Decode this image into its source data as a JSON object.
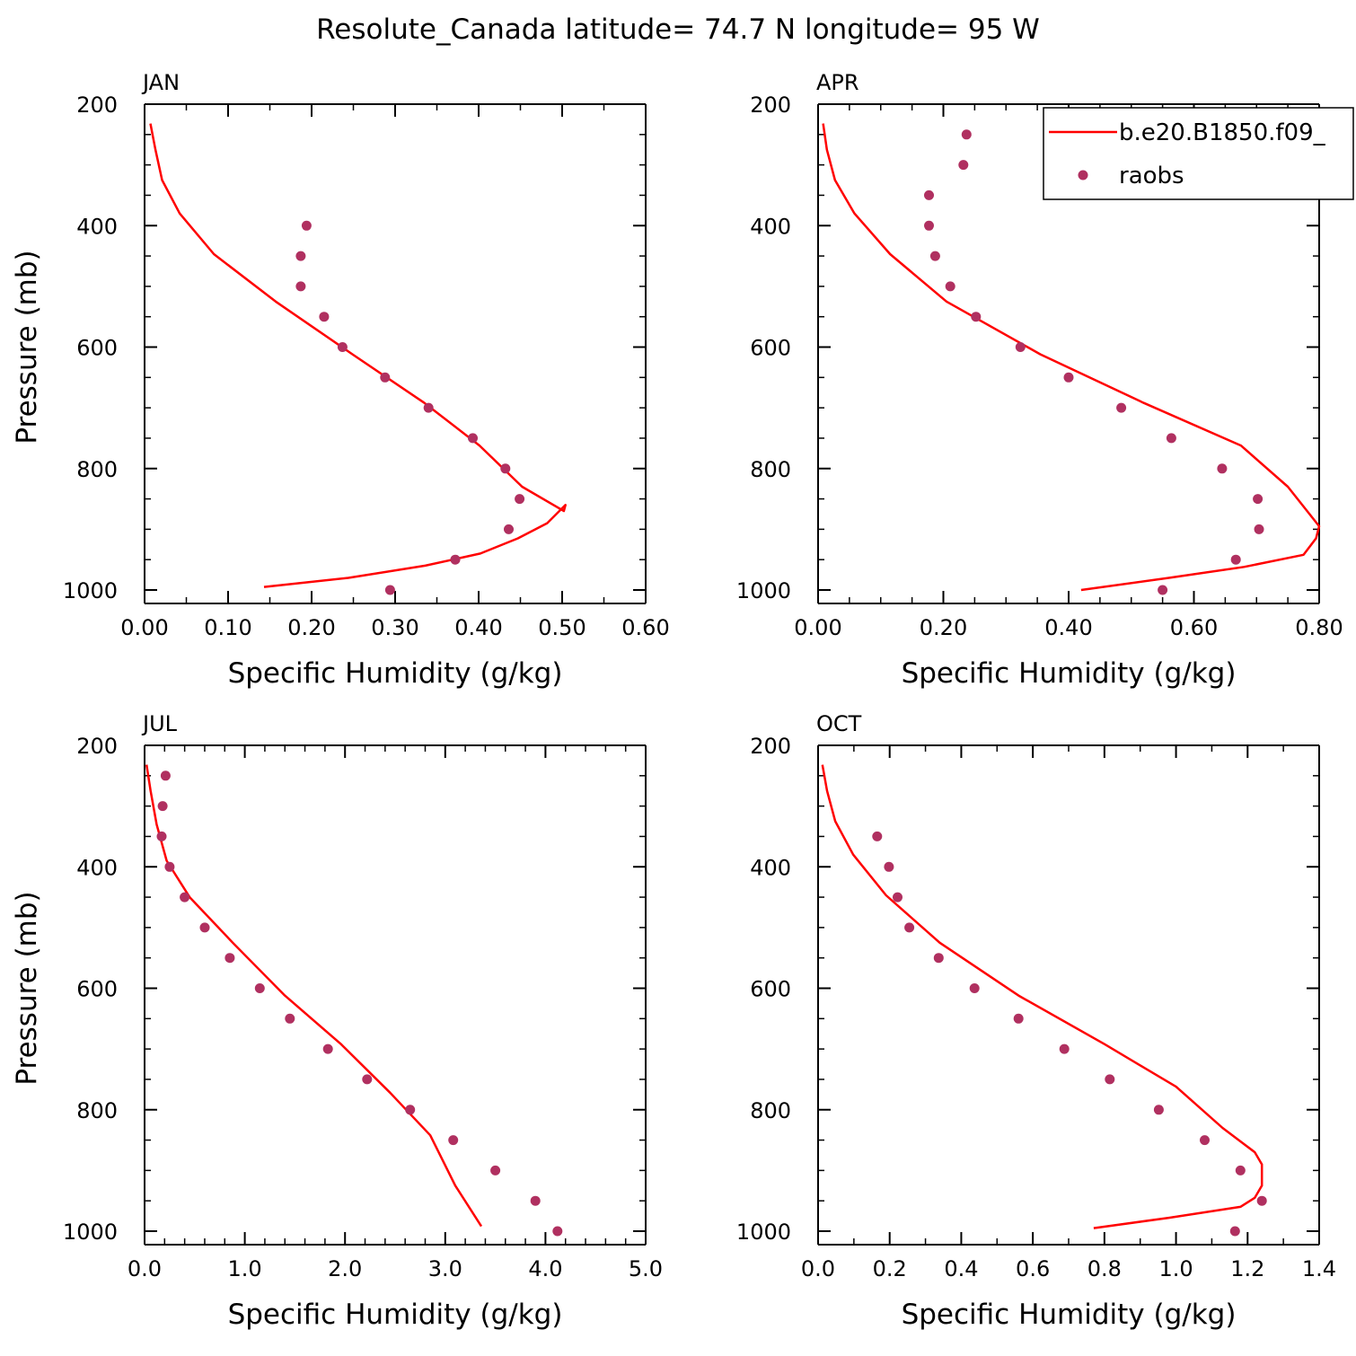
{
  "title": "Resolute_Canada  latitude= 74.7 N longitude= 95 W",
  "legend": {
    "model_label": "b.e20.B1850.f09_",
    "obs_label": "raobs",
    "model_color": "#ff0000",
    "obs_color": "#b03060"
  },
  "chart_data": [
    {
      "type": "line",
      "panel": "JAN",
      "xlabel": "Specific Humidity (g/kg)",
      "ylabel": "Pressure (mb)",
      "xlim": [
        0,
        0.6
      ],
      "ylim": [
        200,
        1000
      ],
      "y_inverted": true,
      "xticks": [
        "0.00",
        "0.10",
        "0.20",
        "0.30",
        "0.40",
        "0.50",
        "0.60"
      ],
      "xtick_values": [
        0,
        0.1,
        0.2,
        0.3,
        0.4,
        0.5,
        0.6
      ],
      "yticks": [
        "200",
        "400",
        "600",
        "800",
        "1000"
      ],
      "ytick_values": [
        200,
        400,
        600,
        800,
        1000
      ],
      "series": [
        {
          "name": "b.e20.B1850.f09_",
          "kind": "line",
          "x": [
            0.007,
            0.013,
            0.021,
            0.042,
            0.083,
            0.157,
            0.249,
            0.335,
            0.401,
            0.452,
            0.502,
            0.504,
            0.482,
            0.447,
            0.402,
            0.336,
            0.244,
            0.143
          ],
          "y": [
            232,
            275,
            325,
            380,
            447,
            525,
            612,
            692,
            762,
            830,
            870,
            860,
            890,
            915,
            940,
            960,
            980,
            995
          ]
        },
        {
          "name": "raobs",
          "kind": "scatter",
          "x": [
            0.194,
            0.187,
            0.187,
            0.215,
            0.237,
            0.288,
            0.34,
            0.393,
            0.432,
            0.449,
            0.436,
            0.372,
            0.294
          ],
          "y": [
            400,
            450,
            500,
            550,
            600,
            650,
            700,
            750,
            800,
            850,
            900,
            950,
            1000
          ]
        }
      ]
    },
    {
      "type": "line",
      "panel": "APR",
      "xlabel": "Specific Humidity (g/kg)",
      "ylabel": "",
      "xlim": [
        0,
        0.8
      ],
      "ylim": [
        200,
        1000
      ],
      "y_inverted": true,
      "xticks": [
        "0.00",
        "0.20",
        "0.40",
        "0.60",
        "0.80"
      ],
      "xtick_values": [
        0,
        0.2,
        0.4,
        0.6,
        0.8
      ],
      "yticks": [
        "200",
        "400",
        "600",
        "800",
        "1000"
      ],
      "ytick_values": [
        200,
        400,
        600,
        800,
        1000
      ],
      "series": [
        {
          "name": "b.e20.B1850.f09_",
          "kind": "line",
          "x": [
            0.008,
            0.014,
            0.027,
            0.058,
            0.115,
            0.205,
            0.355,
            0.52,
            0.675,
            0.75,
            0.8,
            0.795,
            0.775,
            0.68,
            0.56,
            0.42
          ],
          "y": [
            232,
            275,
            325,
            380,
            447,
            525,
            612,
            692,
            762,
            830,
            895,
            915,
            942,
            962,
            980,
            1000
          ]
        },
        {
          "name": "raobs",
          "kind": "scatter",
          "x": [
            0.237,
            0.232,
            0.177,
            0.177,
            0.187,
            0.211,
            0.252,
            0.323,
            0.4,
            0.484,
            0.564,
            0.645,
            0.702,
            0.704,
            0.667,
            0.55
          ],
          "y": [
            250,
            300,
            350,
            400,
            450,
            500,
            550,
            600,
            650,
            700,
            750,
            800,
            850,
            900,
            950,
            1000
          ]
        }
      ]
    },
    {
      "type": "line",
      "panel": "JUL",
      "xlabel": "Specific Humidity (g/kg)",
      "ylabel": "Pressure (mb)",
      "xlim": [
        0,
        5.0
      ],
      "ylim": [
        200,
        1000
      ],
      "y_inverted": true,
      "xticks": [
        "0.0",
        "1.0",
        "2.0",
        "3.0",
        "4.0",
        "5.0"
      ],
      "xtick_values": [
        0,
        1,
        2,
        3,
        4,
        5
      ],
      "yticks": [
        "200",
        "400",
        "600",
        "800",
        "1000"
      ],
      "ytick_values": [
        200,
        400,
        600,
        800,
        1000
      ],
      "series": [
        {
          "name": "b.e20.B1850.f09_",
          "kind": "line",
          "x": [
            0.02,
            0.06,
            0.12,
            0.22,
            0.45,
            0.88,
            1.4,
            1.96,
            2.45,
            2.85,
            3.1,
            3.36
          ],
          "y": [
            232,
            275,
            330,
            390,
            450,
            525,
            612,
            692,
            772,
            842,
            925,
            992
          ]
        },
        {
          "name": "raobs",
          "kind": "scatter",
          "x": [
            0.21,
            0.18,
            0.17,
            0.25,
            0.4,
            0.6,
            0.85,
            1.15,
            1.45,
            1.83,
            2.22,
            2.65,
            3.08,
            3.5,
            3.9,
            4.12
          ],
          "y": [
            250,
            300,
            350,
            400,
            450,
            500,
            550,
            600,
            650,
            700,
            750,
            800,
            850,
            900,
            950,
            1000
          ]
        }
      ]
    },
    {
      "type": "line",
      "panel": "OCT",
      "xlabel": "Specific Humidity (g/kg)",
      "ylabel": "",
      "xlim": [
        0,
        1.4
      ],
      "ylim": [
        200,
        1000
      ],
      "y_inverted": true,
      "xticks": [
        "0.0",
        "0.2",
        "0.4",
        "0.6",
        "0.8",
        "1.0",
        "1.2",
        "1.4"
      ],
      "xtick_values": [
        0,
        0.2,
        0.4,
        0.6,
        0.8,
        1.0,
        1.2,
        1.4
      ],
      "yticks": [
        "200",
        "400",
        "600",
        "800",
        "1000"
      ],
      "ytick_values": [
        200,
        400,
        600,
        800,
        1000
      ],
      "series": [
        {
          "name": "b.e20.B1850.f09_",
          "kind": "line",
          "x": [
            0.012,
            0.025,
            0.048,
            0.098,
            0.19,
            0.34,
            0.56,
            0.8,
            1.0,
            1.13,
            1.22,
            1.24,
            1.24,
            1.22,
            1.18,
            0.98,
            0.77
          ],
          "y": [
            232,
            275,
            325,
            380,
            447,
            525,
            612,
            692,
            762,
            830,
            870,
            890,
            925,
            945,
            960,
            978,
            995
          ]
        },
        {
          "name": "raobs",
          "kind": "scatter",
          "x": [
            0.165,
            0.198,
            0.222,
            0.255,
            0.337,
            0.437,
            0.56,
            0.688,
            0.815,
            0.952,
            1.08,
            1.18,
            1.24,
            1.165
          ],
          "y": [
            350,
            400,
            450,
            500,
            550,
            600,
            650,
            700,
            750,
            800,
            850,
            900,
            950,
            1000
          ]
        }
      ]
    }
  ]
}
